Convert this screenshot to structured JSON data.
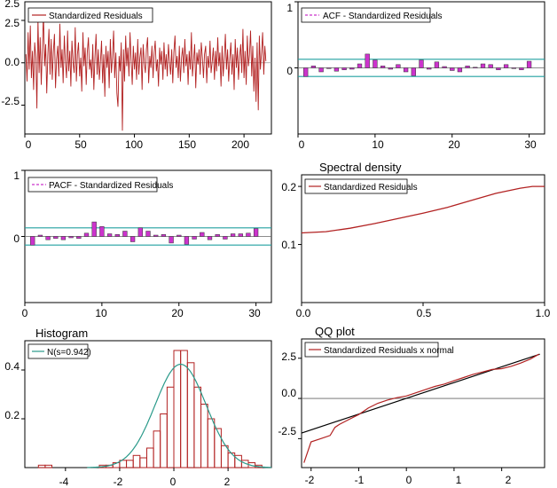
{
  "colors": {
    "residual": "#b22222",
    "acf_bar": "#cc33cc",
    "band": "#20a0a0",
    "qq_ref": "#000000",
    "zero_line": "#666666",
    "normal_curve": "#2a9a8a"
  },
  "chart_data": [
    {
      "type": "line",
      "legend": "Standardized Residuals",
      "x_ticks": [
        "0",
        "50",
        "100",
        "150",
        "200"
      ],
      "y_ticks": [
        "-2.5",
        "0.0",
        "2.5"
      ],
      "xlim": [
        0,
        225
      ],
      "ylim": [
        -4.2,
        3.6
      ],
      "y_values": [
        0.5,
        -1.1,
        1.8,
        -0.4,
        2.2,
        -0.9,
        0.7,
        -1.6,
        1.2,
        0.3,
        -2.7,
        2.6,
        -0.6,
        1.5,
        -1.3,
        0.9,
        2.9,
        -0.2,
        1.1,
        -1.8,
        0.4,
        2.0,
        -0.7,
        1.4,
        -1.0,
        0.6,
        1.7,
        -1.5,
        0.2,
        1.0,
        -0.8,
        2.3,
        -0.3,
        0.8,
        -1.2,
        1.6,
        0.1,
        -0.9,
        1.9,
        -0.5,
        0.7,
        -1.4,
        1.3,
        0.0,
        -0.6,
        2.1,
        -1.1,
        0.5,
        1.2,
        -0.8,
        0.3,
        -1.7,
        1.8,
        -0.2,
        0.9,
        -1.3,
        0.6,
        1.5,
        -0.4,
        0.2,
        -0.9,
        1.1,
        -1.6,
        0.4,
        1.7,
        -0.7,
        0.8,
        -1.0,
        0.1,
        1.3,
        -1.2,
        0.5,
        -2.0,
        1.0,
        -0.3,
        0.7,
        -1.5,
        1.4,
        -0.6,
        0.3,
        1.9,
        -0.9,
        0.6,
        -1.8,
        -2.6,
        0.4,
        -0.5,
        1.2,
        -4.0,
        0.8,
        -1.1,
        1.6,
        -0.2,
        0.9,
        -0.8,
        1.8,
        0.2,
        -1.3,
        1.0,
        -0.4,
        0.6,
        -1.0,
        1.4,
        -0.7,
        0.3,
        0.9,
        -1.6,
        1.1,
        0.0,
        -0.6,
        0.8,
        1.5,
        -1.2,
        0.4,
        -0.3,
        1.0,
        -0.9,
        0.6,
        1.3,
        -0.5,
        0.2,
        -1.4,
        0.9,
        -0.1,
        0.7,
        -1.0,
        1.2,
        -0.4,
        0.5,
        -0.8,
        1.1,
        0.1,
        -0.7,
        0.8,
        -1.2,
        0.6,
        1.6,
        -0.3,
        0.4,
        -0.9,
        1.0,
        -1.1,
        0.3,
        0.9,
        -0.6,
        1.4,
        -0.2,
        0.5,
        -1.3,
        0.7,
        -0.4,
        1.8,
        -0.8,
        0.2,
        1.1,
        -1.5,
        0.6,
        -0.1,
        0.8,
        -0.7,
        1.2,
        0.3,
        -0.9,
        0.5,
        1.0,
        -1.2,
        0.4,
        -0.3,
        1.3,
        -0.6,
        0.1,
        0.9,
        -1.0,
        0.7,
        -0.5,
        1.5,
        -0.2,
        0.6,
        -1.4,
        1.0,
        -0.8,
        0.3,
        1.7,
        -0.4,
        0.8,
        -1.1,
        0.2,
        1.2,
        -0.7,
        0.5,
        -1.6,
        1.4,
        -0.3,
        0.9,
        -1.0,
        0.4,
        1.1,
        -0.6,
        2.0,
        -0.9,
        0.7,
        -1.3,
        1.6,
        -0.2,
        0.5,
        1.9,
        -0.8,
        1.0,
        -1.7,
        0.3,
        -2.3,
        1.2,
        -2.8,
        1.6,
        -0.4,
        0.6,
        1.8,
        -0.7,
        1.0,
        0.1
      ]
    },
    {
      "type": "bar",
      "legend": "ACF - Standardized Residuals",
      "x_ticks": [
        "0",
        "10",
        "20",
        "30"
      ],
      "y_ticks": [
        "0",
        "1"
      ],
      "xlim": [
        0,
        32
      ],
      "ylim": [
        -1,
        1
      ],
      "band": 0.13,
      "lags": [
        1,
        2,
        3,
        4,
        5,
        6,
        7,
        8,
        9,
        10,
        11,
        12,
        13,
        14,
        15,
        16,
        17,
        18,
        19,
        20,
        21,
        22,
        23,
        24,
        25,
        26,
        27,
        28,
        29,
        30
      ],
      "values": [
        -0.13,
        0.03,
        -0.06,
        -0.01,
        -0.05,
        -0.03,
        -0.02,
        0.06,
        0.21,
        0.12,
        0.03,
        -0.02,
        0.05,
        -0.06,
        -0.12,
        0.12,
        -0.02,
        0.09,
        0.02,
        -0.04,
        -0.06,
        0.03,
        0.01,
        0.06,
        0.05,
        -0.03,
        0.05,
        -0.01,
        -0.03,
        0.1
      ]
    },
    {
      "type": "bar",
      "legend": "PACF - Standardized Residuals",
      "x_ticks": [
        "0",
        "10",
        "20",
        "30"
      ],
      "y_ticks": [
        "0",
        "1"
      ],
      "xlim": [
        0,
        32
      ],
      "ylim": [
        -1,
        1
      ],
      "band": 0.13,
      "lags": [
        1,
        2,
        3,
        4,
        5,
        6,
        7,
        8,
        9,
        10,
        11,
        12,
        13,
        14,
        15,
        16,
        17,
        18,
        19,
        20,
        21,
        22,
        23,
        24,
        25,
        26,
        27,
        28,
        29,
        30
      ],
      "values": [
        -0.13,
        0.02,
        -0.05,
        -0.03,
        -0.05,
        -0.02,
        -0.03,
        0.05,
        0.22,
        0.15,
        0.04,
        0.03,
        0.08,
        -0.08,
        0.13,
        0.08,
        0.02,
        0.03,
        -0.1,
        0.02,
        -0.12,
        -0.04,
        0.06,
        -0.05,
        0.03,
        -0.04,
        0.04,
        0.04,
        0.05,
        0.12
      ]
    },
    {
      "type": "line",
      "title": "Spectral density",
      "legend": "Standardized Residuals",
      "x_ticks": [
        "0.0",
        "0.5",
        "1.0"
      ],
      "y_ticks": [
        "0.1",
        "0.2"
      ],
      "xlim": [
        0,
        1
      ],
      "ylim": [
        0,
        0.22
      ],
      "x": [
        0,
        0.1,
        0.2,
        0.3,
        0.4,
        0.5,
        0.6,
        0.7,
        0.8,
        0.9,
        0.95,
        1.0
      ],
      "y": [
        0.12,
        0.122,
        0.128,
        0.136,
        0.145,
        0.154,
        0.164,
        0.176,
        0.188,
        0.197,
        0.2,
        0.2
      ]
    },
    {
      "type": "bar",
      "title": "Histogram",
      "legend": "N(s=0.942)",
      "x_ticks": [
        "-4",
        "-2",
        "0",
        "2"
      ],
      "y_ticks": [
        "0.2",
        "0.4"
      ],
      "xlim": [
        -5.5,
        3.6
      ],
      "ylim": [
        0,
        0.52
      ],
      "bin_width": 0.25,
      "bins": [
        [
          -5.0,
          0.01
        ],
        [
          -4.75,
          0.01
        ],
        [
          -2.75,
          0.01
        ],
        [
          -2.5,
          0.01
        ],
        [
          -2.25,
          0.02
        ],
        [
          -2.0,
          0.03
        ],
        [
          -1.75,
          0.03
        ],
        [
          -1.5,
          0.05
        ],
        [
          -1.25,
          0.04
        ],
        [
          -1.0,
          0.08
        ],
        [
          -0.75,
          0.15
        ],
        [
          -0.5,
          0.22
        ],
        [
          -0.25,
          0.33
        ],
        [
          0.0,
          0.48
        ],
        [
          0.25,
          0.48
        ],
        [
          0.5,
          0.43
        ],
        [
          0.75,
          0.33
        ],
        [
          1.0,
          0.26
        ],
        [
          1.25,
          0.2
        ],
        [
          1.5,
          0.16
        ],
        [
          1.75,
          0.09
        ],
        [
          2.0,
          0.06
        ],
        [
          2.25,
          0.05
        ],
        [
          2.5,
          0.03
        ],
        [
          2.75,
          0.02
        ],
        [
          3.0,
          0.01
        ]
      ],
      "normal_mean": 0.25,
      "normal_sd": 0.942
    },
    {
      "type": "scatter",
      "title": "QQ plot",
      "legend": "Standardized Residuals x normal",
      "x_ticks": [
        "-2",
        "-1",
        "0",
        "1",
        "2"
      ],
      "y_ticks": [
        "-2.5",
        "0.0",
        "2.5"
      ],
      "xlim": [
        -2.2,
        2.9
      ],
      "ylim": [
        -4.3,
        3.7
      ],
      "x": [
        -2.15,
        -2.0,
        -1.8,
        -1.6,
        -1.5,
        -1.4,
        -1.2,
        -1.0,
        -0.8,
        -0.6,
        -0.4,
        -0.2,
        0.0,
        0.2,
        0.4,
        0.6,
        0.8,
        1.0,
        1.2,
        1.4,
        1.6,
        1.8,
        2.0,
        2.2,
        2.4,
        2.6,
        2.78
      ],
      "y": [
        -4.0,
        -2.7,
        -2.5,
        -2.3,
        -1.8,
        -1.6,
        -1.3,
        -1.0,
        -0.6,
        -0.3,
        -0.1,
        0.05,
        0.15,
        0.35,
        0.55,
        0.75,
        0.9,
        1.1,
        1.3,
        1.5,
        1.65,
        1.8,
        1.85,
        2.0,
        2.2,
        2.45,
        2.75
      ],
      "ref_line": [
        [
          -2.2,
          -2.15
        ],
        [
          2.8,
          2.75
        ]
      ]
    }
  ]
}
